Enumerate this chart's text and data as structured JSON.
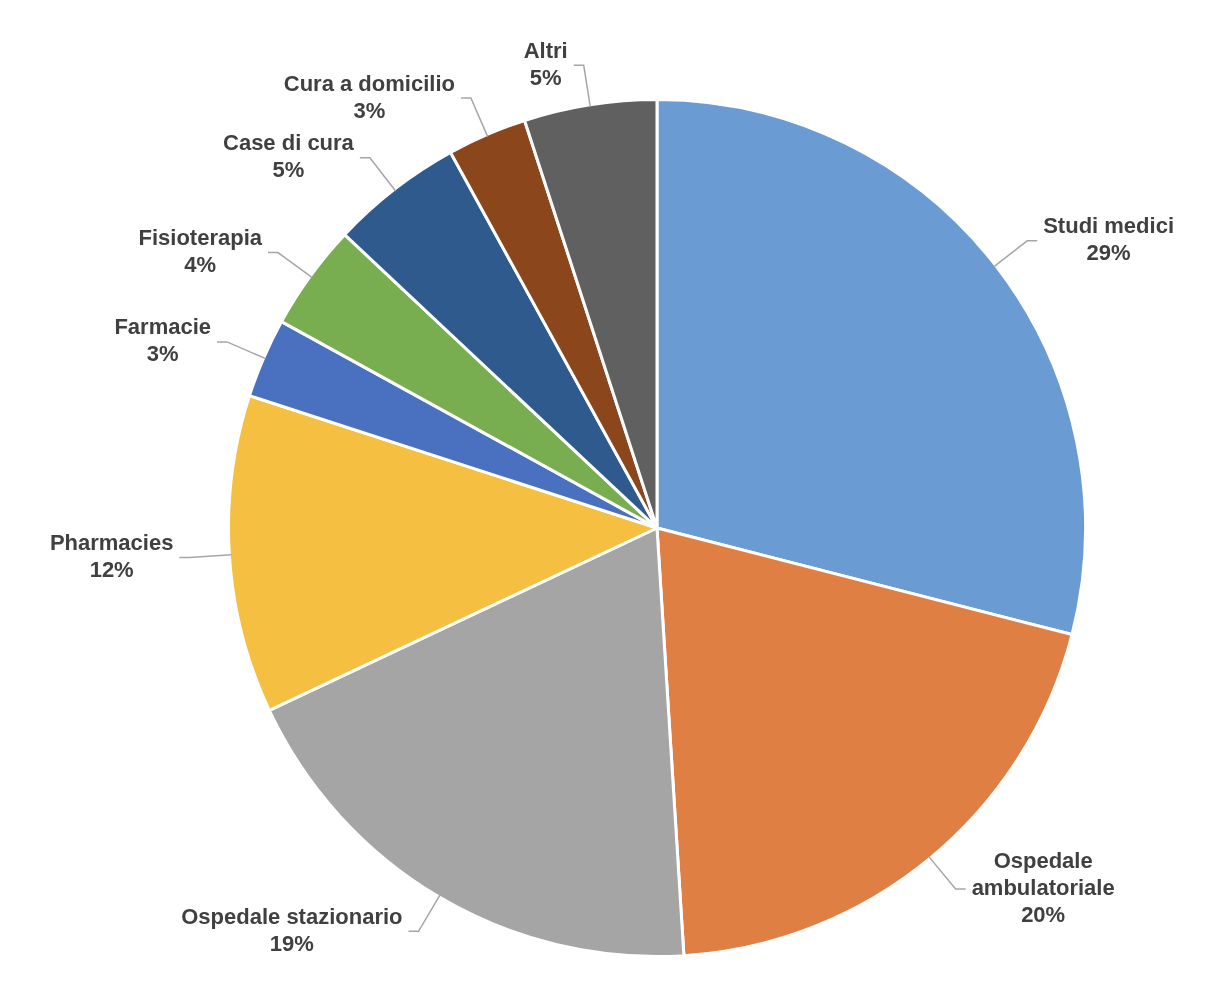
{
  "chart_data": {
    "type": "pie",
    "categories": [
      "Studi medici",
      "Ospedale ambulatoriale",
      "Ospedale stazionario",
      "Pharmacies",
      "Farmacie",
      "Fisioterapia",
      "Case di cura",
      "Cura a domicilio",
      "Altri"
    ],
    "values": [
      29,
      20,
      19,
      12,
      3,
      4,
      5,
      3,
      5
    ],
    "colors": [
      "#6a9bd3",
      "#e07f43",
      "#a5a5a5",
      "#f5bf42",
      "#4a70c0",
      "#78ad50",
      "#2e5a8e",
      "#8c461c",
      "#606060"
    ],
    "value_labels": [
      "29%",
      "20%",
      "19%",
      "12%",
      "3%",
      "4%",
      "5%",
      "3%",
      "5%"
    ],
    "legend": false
  }
}
